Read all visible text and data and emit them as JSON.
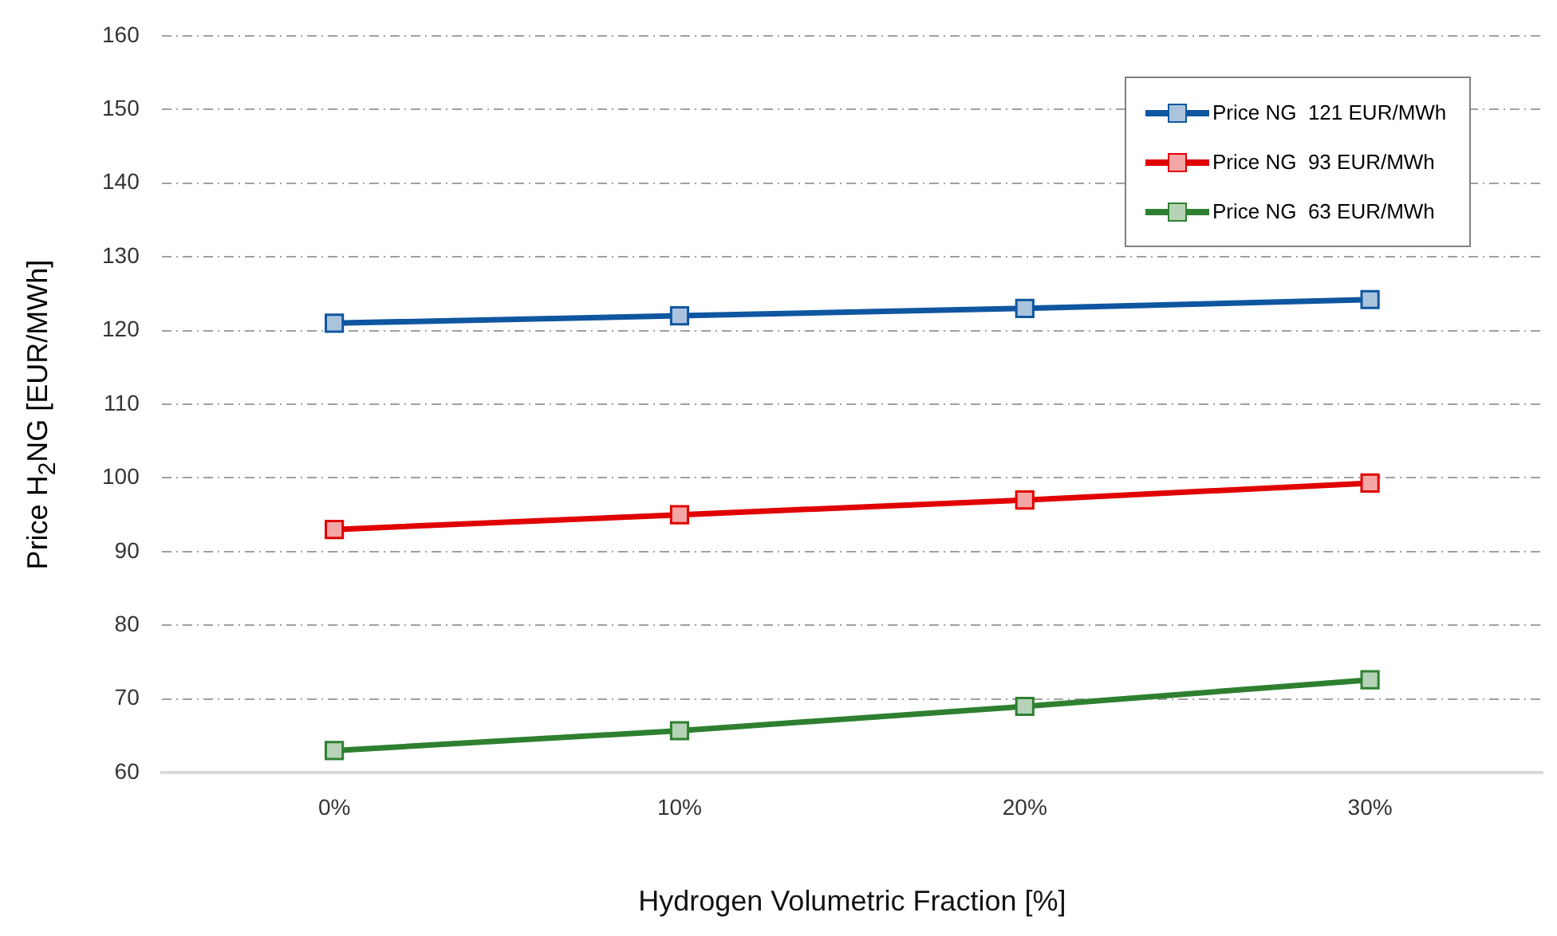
{
  "chart_data": {
    "type": "line",
    "xlabel": "Hydrogen Volumetric Fraction [%]",
    "ylabel": "Price H$_{2}$NG [EUR/MWh]",
    "categories": [
      "0%",
      "10%",
      "20%",
      "30%"
    ],
    "series": [
      {
        "name": "Price NG  121 EUR/MWh",
        "color": "#0f56a0",
        "values": [
          121,
          122,
          123,
          124.2
        ]
      },
      {
        "name": "Price NG  93 EUR/MWh",
        "color": "#e00000",
        "values": [
          93,
          95,
          97,
          99.3
        ]
      },
      {
        "name": "Price NG  63 EUR/MWh",
        "color": "#2e8030",
        "values": [
          63,
          65.7,
          69,
          72.6
        ]
      }
    ],
    "ylim": [
      60,
      160
    ],
    "yticks": [
      60,
      70,
      80,
      90,
      100,
      110,
      120,
      130,
      140,
      150,
      160
    ],
    "grid": "y",
    "legend": "top right",
    "marker": "square",
    "line_style": "solid"
  }
}
